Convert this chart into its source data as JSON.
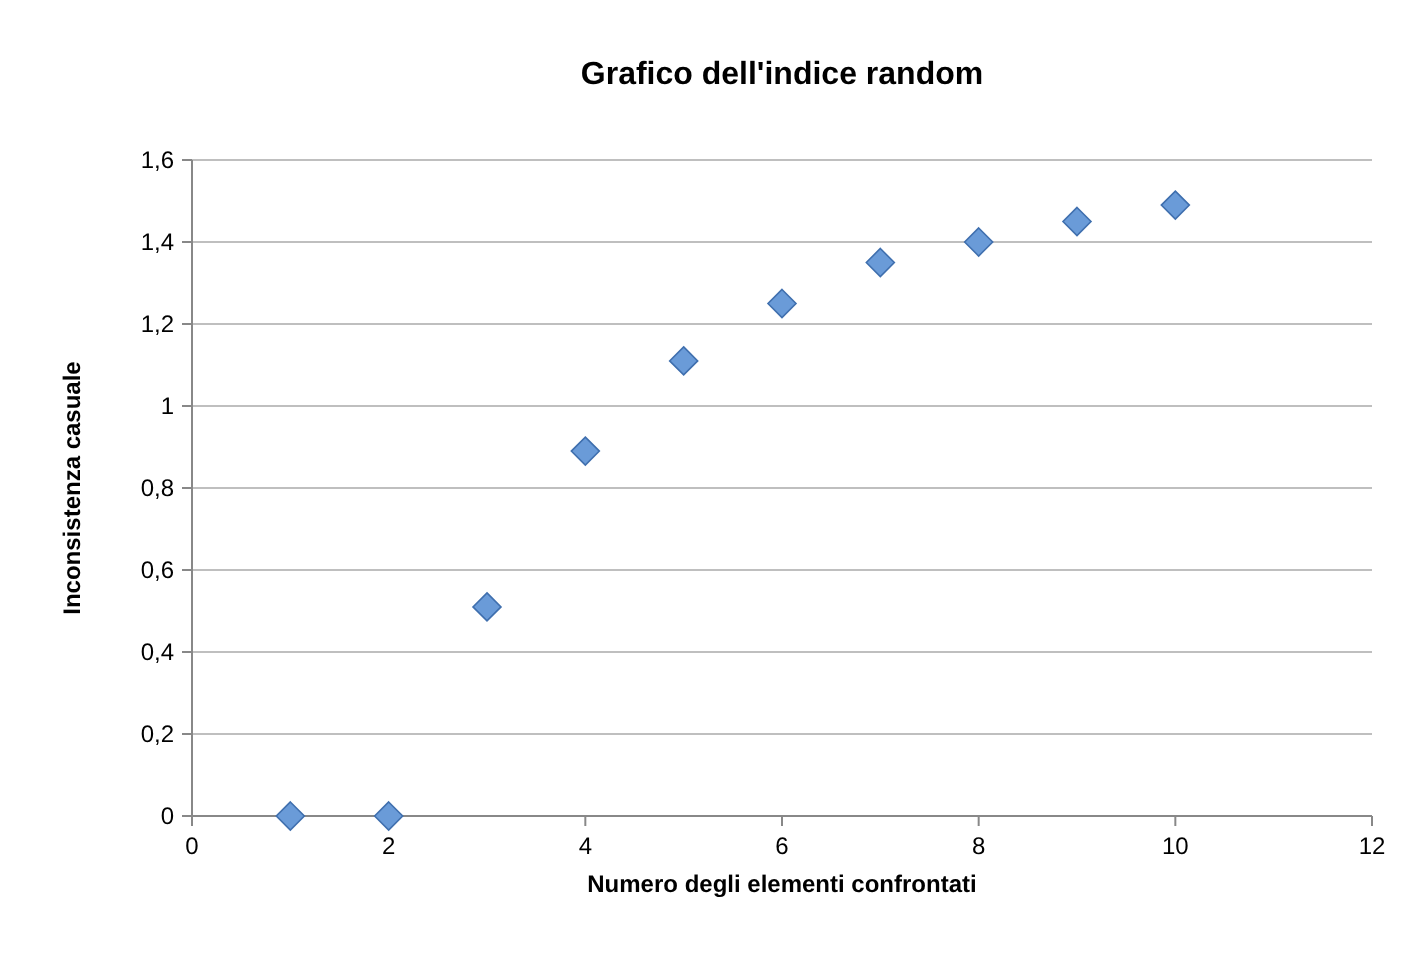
{
  "chart_data": {
    "type": "scatter",
    "title": "Grafico dell'indice random",
    "xlabel": "Numero degli elementi confrontati",
    "ylabel": "Inconsistenza casuale",
    "x": [
      1,
      2,
      3,
      4,
      5,
      6,
      7,
      8,
      9,
      10
    ],
    "series": [
      {
        "color": "#6a9bd8",
        "values": [
          0,
          0,
          0.51,
          0.89,
          1.11,
          1.25,
          1.35,
          1.4,
          1.45,
          1.49
        ]
      }
    ],
    "xlim": [
      0,
      12
    ],
    "xticks": [
      0,
      2,
      4,
      6,
      8,
      10,
      12
    ],
    "ylim": [
      0,
      1.6
    ],
    "yticks": [
      0,
      {
        "value": 0.2,
        "label": "0,2"
      },
      {
        "value": 0.4,
        "label": "0,4"
      },
      {
        "value": 0.6,
        "label": "0,6"
      },
      {
        "value": 0.8,
        "label": "0,8"
      },
      1,
      {
        "value": 1.2,
        "label": "1,2"
      },
      {
        "value": 1.4,
        "label": "1,4"
      },
      {
        "value": 1.6,
        "label": "1,6"
      }
    ],
    "grid": "y",
    "marker": "diamond"
  }
}
